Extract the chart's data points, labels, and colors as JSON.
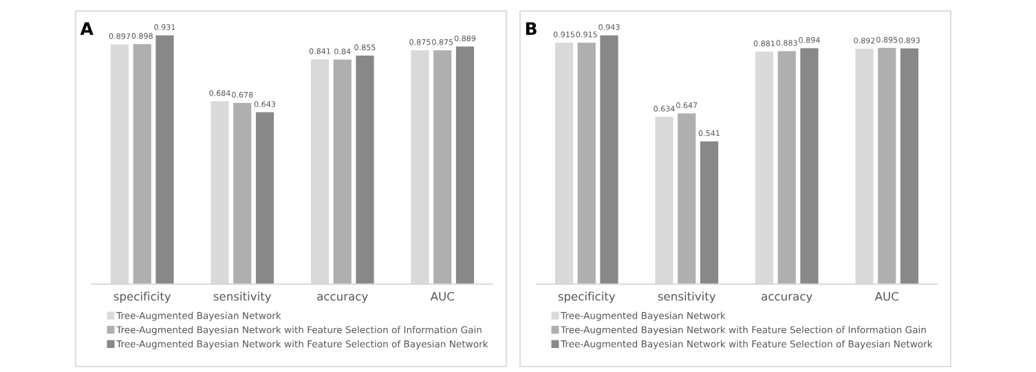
{
  "chart_data": [
    {
      "type": "bar",
      "title": "A",
      "categories": [
        "specificity",
        "sensitivity",
        "accuracy",
        "AUC"
      ],
      "tick_labels": "x",
      "data_labels": true,
      "grid": false,
      "legend": "bottom",
      "series": [
        {
          "name": "Tree-Augmented Bayesian Network",
          "color": "#d9d9d9",
          "values": [
            0.897,
            0.684,
            0.841,
            0.875
          ]
        },
        {
          "name": "Tree-Augmented Bayesian Network with Feature Selection of Information Gain",
          "color": "#afafaf",
          "values": [
            0.898,
            0.678,
            0.84,
            0.875
          ]
        },
        {
          "name": "Tree-Augmented Bayesian Network with Feature Selection of Bayesian Network",
          "color": "#888888",
          "values": [
            0.931,
            0.643,
            0.855,
            0.889
          ]
        }
      ]
    },
    {
      "type": "bar",
      "title": "B",
      "categories": [
        "specificity",
        "sensitivity",
        "accuracy",
        "AUC"
      ],
      "tick_labels": "x",
      "data_labels": true,
      "grid": false,
      "legend": "bottom",
      "series": [
        {
          "name": "Tree-Augmented Bayesian Network",
          "color": "#d9d9d9",
          "values": [
            0.915,
            0.634,
            0.881,
            0.892
          ]
        },
        {
          "name": "Tree-Augmented Bayesian Network with Feature Selection of Information Gain",
          "color": "#afafaf",
          "values": [
            0.915,
            0.647,
            0.883,
            0.895
          ]
        },
        {
          "name": "Tree-Augmented Bayesian Network with Feature Selection of Bayesian Network",
          "color": "#888888",
          "values": [
            0.943,
            0.541,
            0.894,
            0.893
          ]
        }
      ]
    }
  ]
}
